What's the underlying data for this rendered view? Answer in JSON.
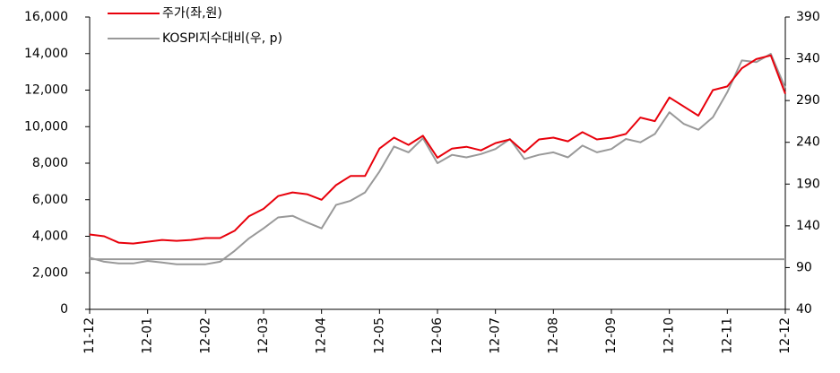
{
  "chart_data": {
    "type": "line",
    "categories": [
      "11-12",
      null,
      null,
      null,
      "12-01",
      null,
      null,
      null,
      "12-02",
      null,
      null,
      null,
      "12-03",
      null,
      null,
      null,
      "12-04",
      null,
      null,
      null,
      "12-05",
      null,
      null,
      null,
      "12-06",
      null,
      null,
      null,
      "12-07",
      null,
      null,
      null,
      "12-08",
      null,
      null,
      null,
      "12-09",
      null,
      null,
      null,
      "12-10",
      null,
      null,
      null,
      "12-11",
      null,
      null,
      null,
      "12-12"
    ],
    "series": [
      {
        "name": "주가(좌,원)",
        "color": "#e8000b",
        "axis": "y",
        "values": [
          4100,
          4000,
          3650,
          3600,
          3700,
          3800,
          3750,
          3800,
          3900,
          3900,
          4300,
          5100,
          5500,
          6200,
          6400,
          6300,
          6000,
          6800,
          7300,
          7300,
          8800,
          9400,
          9000,
          9500,
          8300,
          8800,
          8900,
          8700,
          9100,
          9300,
          8600,
          9300,
          9400,
          9200,
          9700,
          9300,
          9400,
          9600,
          10500,
          10300,
          11600,
          11100,
          10600,
          12000,
          12200,
          13200,
          13700,
          13900,
          11800
        ]
      },
      {
        "name": "KOSPI지수대비(우, p)",
        "color": "#999999",
        "axis": "y2",
        "values": [
          102,
          97,
          95,
          95,
          98,
          96,
          94,
          94,
          94,
          97,
          110,
          125,
          137,
          150,
          152,
          144,
          137,
          165,
          170,
          180,
          205,
          235,
          228,
          245,
          215,
          225,
          222,
          226,
          232,
          244,
          220,
          225,
          228,
          222,
          236,
          228,
          232,
          244,
          240,
          250,
          276,
          262,
          255,
          270,
          300,
          338,
          336,
          346,
          305
        ]
      }
    ],
    "reference_line": {
      "value": 100,
      "axis": "y2",
      "color": "#999999"
    },
    "ylim": [
      0,
      16000
    ],
    "yticks": [
      {
        "value": 0,
        "label": "0"
      },
      {
        "value": 2000,
        "label": "2,000"
      },
      {
        "value": 4000,
        "label": "4,000"
      },
      {
        "value": 6000,
        "label": "6,000"
      },
      {
        "value": 8000,
        "label": "8,000"
      },
      {
        "value": 10000,
        "label": "10,000"
      },
      {
        "value": 12000,
        "label": "12,000"
      },
      {
        "value": 14000,
        "label": "14,000"
      },
      {
        "value": 16000,
        "label": "16,000"
      }
    ],
    "y2lim": [
      40,
      390
    ],
    "y2ticks": [
      40,
      90,
      140,
      190,
      240,
      290,
      340,
      390
    ],
    "legend": "top-left"
  }
}
